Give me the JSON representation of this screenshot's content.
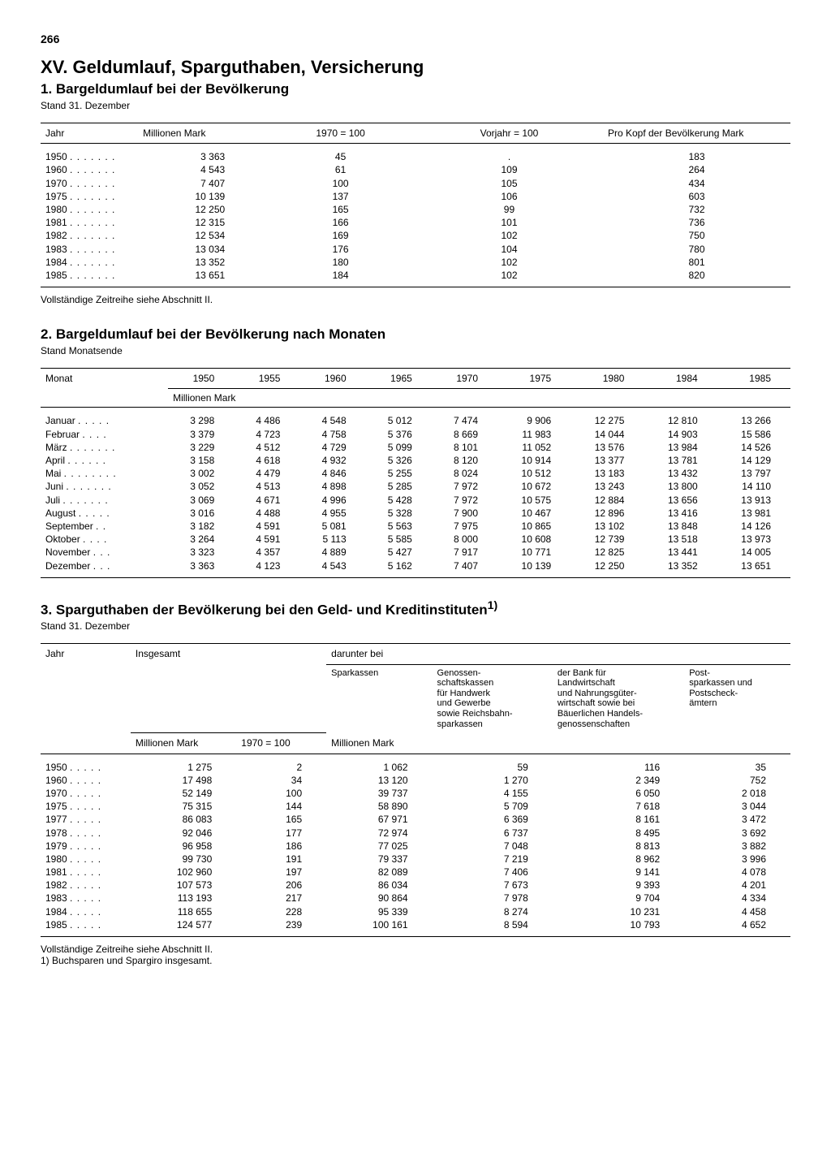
{
  "page_number": "266",
  "title": "XV. Geldumlauf, Sparguthaben, Versicherung",
  "section1": {
    "heading": "1. Bargeldumlauf bei der Bevölkerung",
    "subtext": "Stand 31. Dezember",
    "columns": [
      "Jahr",
      "Millionen Mark",
      "1970 = 100",
      "Vorjahr = 100",
      "Pro Kopf der Bevölkerung Mark"
    ],
    "rows": [
      [
        "1950",
        "3 363",
        "45",
        ".",
        "183"
      ],
      [
        "1960",
        "4 543",
        "61",
        "109",
        "264"
      ],
      [
        "1970",
        "7 407",
        "100",
        "105",
        "434"
      ],
      [
        "1975",
        "10 139",
        "137",
        "106",
        "603"
      ],
      [
        "1980",
        "12 250",
        "165",
        "99",
        "732"
      ],
      [
        "1981",
        "12 315",
        "166",
        "101",
        "736"
      ],
      [
        "1982",
        "12 534",
        "169",
        "102",
        "750"
      ],
      [
        "1983",
        "13 034",
        "176",
        "104",
        "780"
      ],
      [
        "1984",
        "13 352",
        "180",
        "102",
        "801"
      ],
      [
        "1985",
        "13 651",
        "184",
        "102",
        "820"
      ]
    ],
    "note": "Vollständige Zeitreihe siehe Abschnitt II."
  },
  "section2": {
    "heading": "2. Bargeldumlauf bei der Bevölkerung nach Monaten",
    "subtext": "Stand Monatsende",
    "col_head": "Monat",
    "years": [
      "1950",
      "1955",
      "1960",
      "1965",
      "1970",
      "1975",
      "1980",
      "1984",
      "1985"
    ],
    "unit": "Millionen Mark",
    "rows": [
      [
        "Januar",
        "3 298",
        "4 486",
        "4 548",
        "5 012",
        "7 474",
        "9 906",
        "12 275",
        "12 810",
        "13 266"
      ],
      [
        "Februar",
        "3 379",
        "4 723",
        "4 758",
        "5 376",
        "8 669",
        "11 983",
        "14 044",
        "14 903",
        "15 586"
      ],
      [
        "März",
        "3 229",
        "4 512",
        "4 729",
        "5 099",
        "8 101",
        "11 052",
        "13 576",
        "13 984",
        "14 526"
      ],
      [
        "April",
        "3 158",
        "4 618",
        "4 932",
        "5 326",
        "8 120",
        "10 914",
        "13 377",
        "13 781",
        "14 129"
      ],
      [
        "Mai",
        "3 002",
        "4 479",
        "4 846",
        "5 255",
        "8 024",
        "10 512",
        "13 183",
        "13 432",
        "13 797"
      ],
      [
        "Juni",
        "3 052",
        "4 513",
        "4 898",
        "5 285",
        "7 972",
        "10 672",
        "13 243",
        "13 800",
        "14 110"
      ],
      [
        "Juli",
        "3 069",
        "4 671",
        "4 996",
        "5 428",
        "7 972",
        "10 575",
        "12 884",
        "13 656",
        "13 913"
      ],
      [
        "August",
        "3 016",
        "4 488",
        "4 955",
        "5 328",
        "7 900",
        "10 467",
        "12 896",
        "13 416",
        "13 981"
      ],
      [
        "September",
        "3 182",
        "4 591",
        "5 081",
        "5 563",
        "7 975",
        "10 865",
        "13 102",
        "13 848",
        "14 126"
      ],
      [
        "Oktober",
        "3 264",
        "4 591",
        "5 113",
        "5 585",
        "8 000",
        "10 608",
        "12 739",
        "13 518",
        "13 973"
      ],
      [
        "November",
        "3 323",
        "4 357",
        "4 889",
        "5 427",
        "7 917",
        "10 771",
        "12 825",
        "13 441",
        "14 005"
      ],
      [
        "Dezember",
        "3 363",
        "4 123",
        "4 543",
        "5 162",
        "7 407",
        "10 139",
        "12 250",
        "13 352",
        "13 651"
      ]
    ]
  },
  "section3": {
    "heading": "3. Sparguthaben der Bevölkerung bei den Geld- und Kreditinstituten",
    "sup": "1)",
    "subtext": "Stand 31. Dezember",
    "h_jahr": "Jahr",
    "h_insgesamt": "Insgesamt",
    "h_darunter": "darunter bei",
    "h_cols": [
      "Sparkassen",
      "Genossen-\nschaftskassen\nfür Handwerk\nund Gewerbe\nsowie Reichsbahn-\nsparkassen",
      "der Bank für\nLandwirtschaft\nund Nahrungsgüter-\nwirtschaft sowie bei\nBäuerlichen Handels-\ngenossenschaften",
      "Post-\nsparkassen und\nPostscheck-\nämtern"
    ],
    "unit1": "Millionen Mark",
    "unit2": "1970 = 100",
    "unit3": "Millionen Mark",
    "rows": [
      [
        "1950",
        "1 275",
        "2",
        "1 062",
        "59",
        "116",
        "35"
      ],
      [
        "1960",
        "17 498",
        "34",
        "13 120",
        "1 270",
        "2 349",
        "752"
      ],
      [
        "1970",
        "52 149",
        "100",
        "39 737",
        "4 155",
        "6 050",
        "2 018"
      ],
      [
        "1975",
        "75 315",
        "144",
        "58 890",
        "5 709",
        "7 618",
        "3 044"
      ],
      [
        "1977",
        "86 083",
        "165",
        "67 971",
        "6 369",
        "8 161",
        "3 472"
      ],
      [
        "1978",
        "92 046",
        "177",
        "72 974",
        "6 737",
        "8 495",
        "3 692"
      ],
      [
        "1979",
        "96 958",
        "186",
        "77 025",
        "7 048",
        "8 813",
        "3 882"
      ],
      [
        "1980",
        "99 730",
        "191",
        "79 337",
        "7 219",
        "8 962",
        "3 996"
      ],
      [
        "1981",
        "102 960",
        "197",
        "82 089",
        "7 406",
        "9 141",
        "4 078"
      ],
      [
        "1982",
        "107 573",
        "206",
        "86 034",
        "7 673",
        "9 393",
        "4 201"
      ],
      [
        "1983",
        "113 193",
        "217",
        "90 864",
        "7 978",
        "9 704",
        "4 334"
      ],
      [
        "1984",
        "118 655",
        "228",
        "95 339",
        "8 274",
        "10 231",
        "4 458"
      ],
      [
        "1985",
        "124 577",
        "239",
        "100 161",
        "8 594",
        "10 793",
        "4 652"
      ]
    ],
    "note1": "Vollständige Zeitreihe siehe Abschnitt II.",
    "note2": "1) Buchsparen und Spargiro insgesamt."
  }
}
